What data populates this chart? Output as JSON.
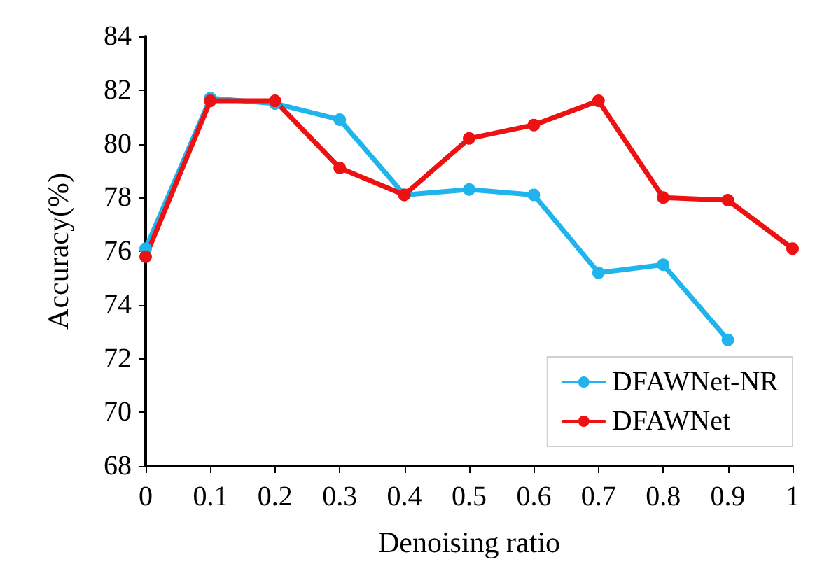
{
  "chart_data": {
    "type": "line",
    "xlabel": "Denoising ratio",
    "ylabel": "Accuracy(%)",
    "x": [
      0,
      0.1,
      0.2,
      0.3,
      0.4,
      0.5,
      0.6,
      0.7,
      0.8,
      0.9,
      1
    ],
    "series": [
      {
        "name": "DFAWNet-NR",
        "color": "#1fb4ec",
        "values": [
          76.1,
          81.7,
          81.5,
          80.9,
          78.1,
          78.3,
          78.1,
          75.2,
          75.5,
          72.7,
          null
        ]
      },
      {
        "name": "DFAWNet",
        "color": "#ee1111",
        "values": [
          75.8,
          81.6,
          81.6,
          79.1,
          78.1,
          80.2,
          80.7,
          81.6,
          78.0,
          77.9,
          76.1
        ]
      }
    ],
    "xlim": [
      0,
      1
    ],
    "xticks": [
      0,
      0.1,
      0.2,
      0.3,
      0.4,
      0.5,
      0.6,
      0.7,
      0.8,
      0.9,
      1
    ],
    "ylim": [
      68,
      84
    ],
    "yticks": [
      68,
      70,
      72,
      74,
      76,
      78,
      80,
      82,
      84
    ],
    "grid": false,
    "legend": "bottom right",
    "marker": "circle",
    "line_style": "solid"
  }
}
